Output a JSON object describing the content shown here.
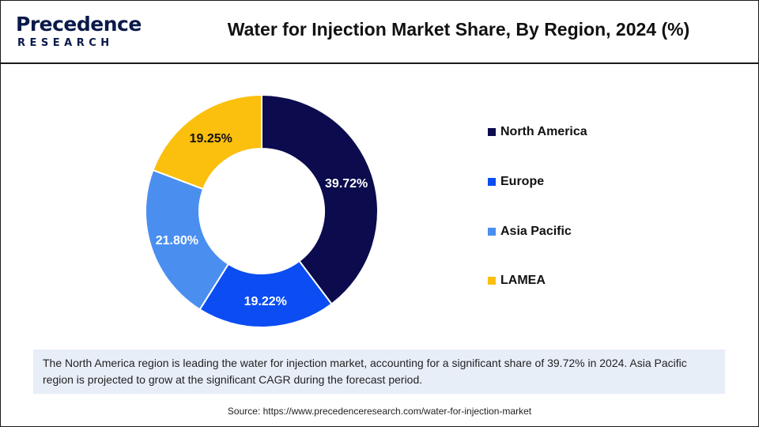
{
  "logo": {
    "brand": "Precedence",
    "sub": "RESEARCH"
  },
  "title": "Water for Injection Market Share, By Region, 2024 (%)",
  "chart_data": {
    "type": "pie",
    "donut": true,
    "categories": [
      "North America",
      "Europe",
      "Asia Pacific",
      "LAMEA"
    ],
    "values": [
      39.72,
      19.22,
      21.8,
      19.25
    ],
    "labels": [
      "39.72%",
      "19.22%",
      "21.80%",
      "19.25%"
    ],
    "colors": [
      "#0b0b4e",
      "#0b4df2",
      "#4a8ff0",
      "#fbbf0e"
    ],
    "label_colors": [
      "#ffffff",
      "#ffffff",
      "#ffffff",
      "#111111"
    ],
    "legend_position": "right"
  },
  "note": "The North America region is leading the water for injection market, accounting for a significant share of 39.72% in 2024. Asia Pacific region is projected to grow at the significant CAGR during the forecast period.",
  "source": "Source: https://www.precedenceresearch.com/water-for-injection-market"
}
